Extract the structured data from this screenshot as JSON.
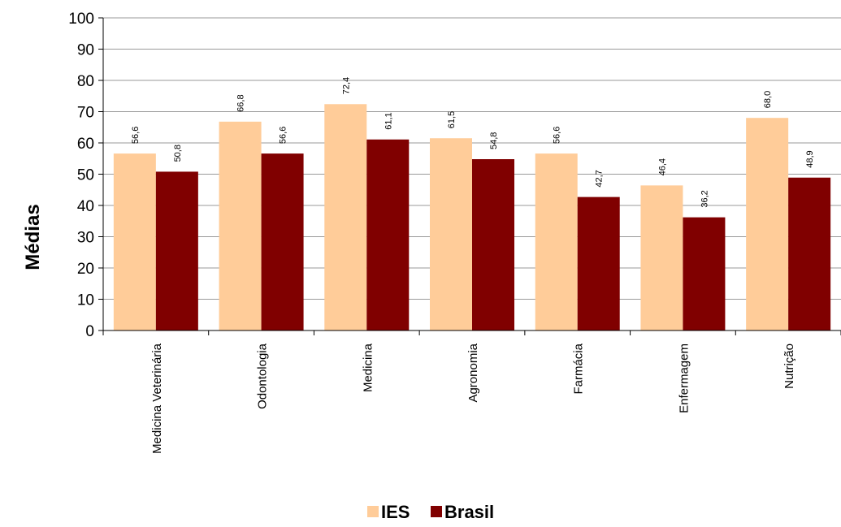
{
  "chart_data": {
    "type": "bar",
    "ylabel": "Médias",
    "xlabel": "",
    "ylim": [
      0,
      100
    ],
    "yticks": [
      0,
      10,
      20,
      30,
      40,
      50,
      60,
      70,
      80,
      90,
      100
    ],
    "grid": true,
    "legend_position": "bottom",
    "categories": [
      "Medicina Veterinária",
      "Odontologia",
      "Medicina",
      "Agronomia",
      "Farmácia",
      "Enfermagem",
      "Nutrição"
    ],
    "series": [
      {
        "name": "IES",
        "color": "#ffcc99",
        "values": [
          56.6,
          66.8,
          72.4,
          61.5,
          56.6,
          46.4,
          68.0
        ],
        "labels": [
          "56,6",
          "66,8",
          "72,4",
          "61,5",
          "56,6",
          "46,4",
          "68,0"
        ]
      },
      {
        "name": "Brasil",
        "color": "#800000",
        "values": [
          50.8,
          56.6,
          61.1,
          54.8,
          42.7,
          36.2,
          48.9
        ],
        "labels": [
          "50,8",
          "56,6",
          "61,1",
          "54,8",
          "42,7",
          "36,2",
          "48,9"
        ]
      }
    ]
  }
}
